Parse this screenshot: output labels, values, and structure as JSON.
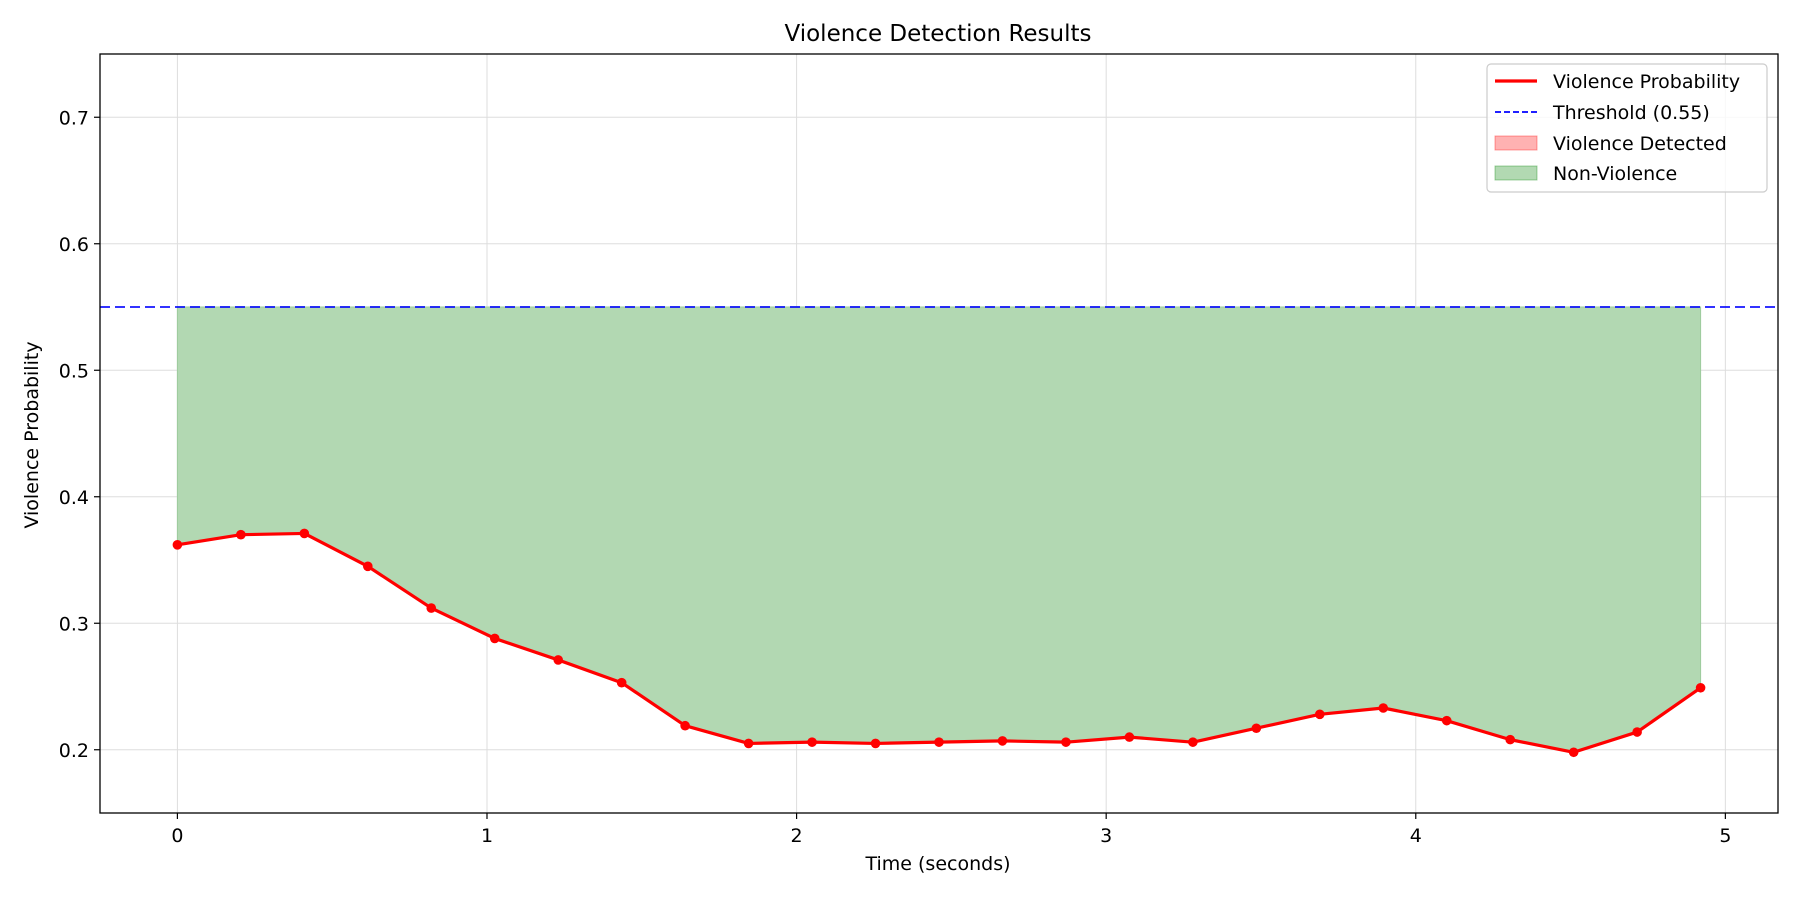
{
  "chart_data": {
    "type": "line",
    "title": "Violence Detection Results",
    "xlabel": "Time (seconds)",
    "ylabel": "Violence Probability",
    "xlim": [
      -0.25,
      5.17
    ],
    "ylim": [
      0.15,
      0.75
    ],
    "xticks": [
      0,
      1,
      2,
      3,
      4,
      5
    ],
    "yticks": [
      0.2,
      0.3,
      0.4,
      0.5,
      0.6,
      0.7
    ],
    "xtick_labels": [
      "0",
      "1",
      "2",
      "3",
      "4",
      "5"
    ],
    "ytick_labels": [
      "0.2",
      "0.3",
      "0.4",
      "0.5",
      "0.6",
      "0.7"
    ],
    "grid": true,
    "legend_position": "top-right",
    "threshold": 0.55,
    "series": [
      {
        "name": "Violence Probability",
        "color": "#ff0000",
        "x": [
          0,
          0.205,
          0.41,
          0.615,
          0.82,
          1.025,
          1.23,
          1.435,
          1.64,
          1.845,
          2.05,
          2.255,
          2.46,
          2.665,
          2.87,
          3.075,
          3.28,
          3.485,
          3.69,
          3.895,
          4.1,
          4.305,
          4.51,
          4.715,
          4.92
        ],
        "values": [
          0.362,
          0.37,
          0.371,
          0.345,
          0.312,
          0.288,
          0.271,
          0.253,
          0.219,
          0.205,
          0.206,
          0.205,
          0.206,
          0.207,
          0.206,
          0.21,
          0.206,
          0.217,
          0.228,
          0.233,
          0.223,
          0.208,
          0.198,
          0.214,
          0.249
        ]
      }
    ],
    "legend": [
      {
        "label": "Violence Probability",
        "kind": "line",
        "color": "#ff0000"
      },
      {
        "label": "Threshold (0.55)",
        "kind": "dashed",
        "color": "#0000ff"
      },
      {
        "label": "Violence Detected",
        "kind": "patch",
        "color": "#ff0000"
      },
      {
        "label": "Non-Violence",
        "kind": "patch",
        "color": "#008000"
      }
    ],
    "colors": {
      "line": "#ff0000",
      "threshold": "#0000ff",
      "violence_fill": "#ffb3b3",
      "nonviolence_fill": "#b2d8b2"
    }
  }
}
